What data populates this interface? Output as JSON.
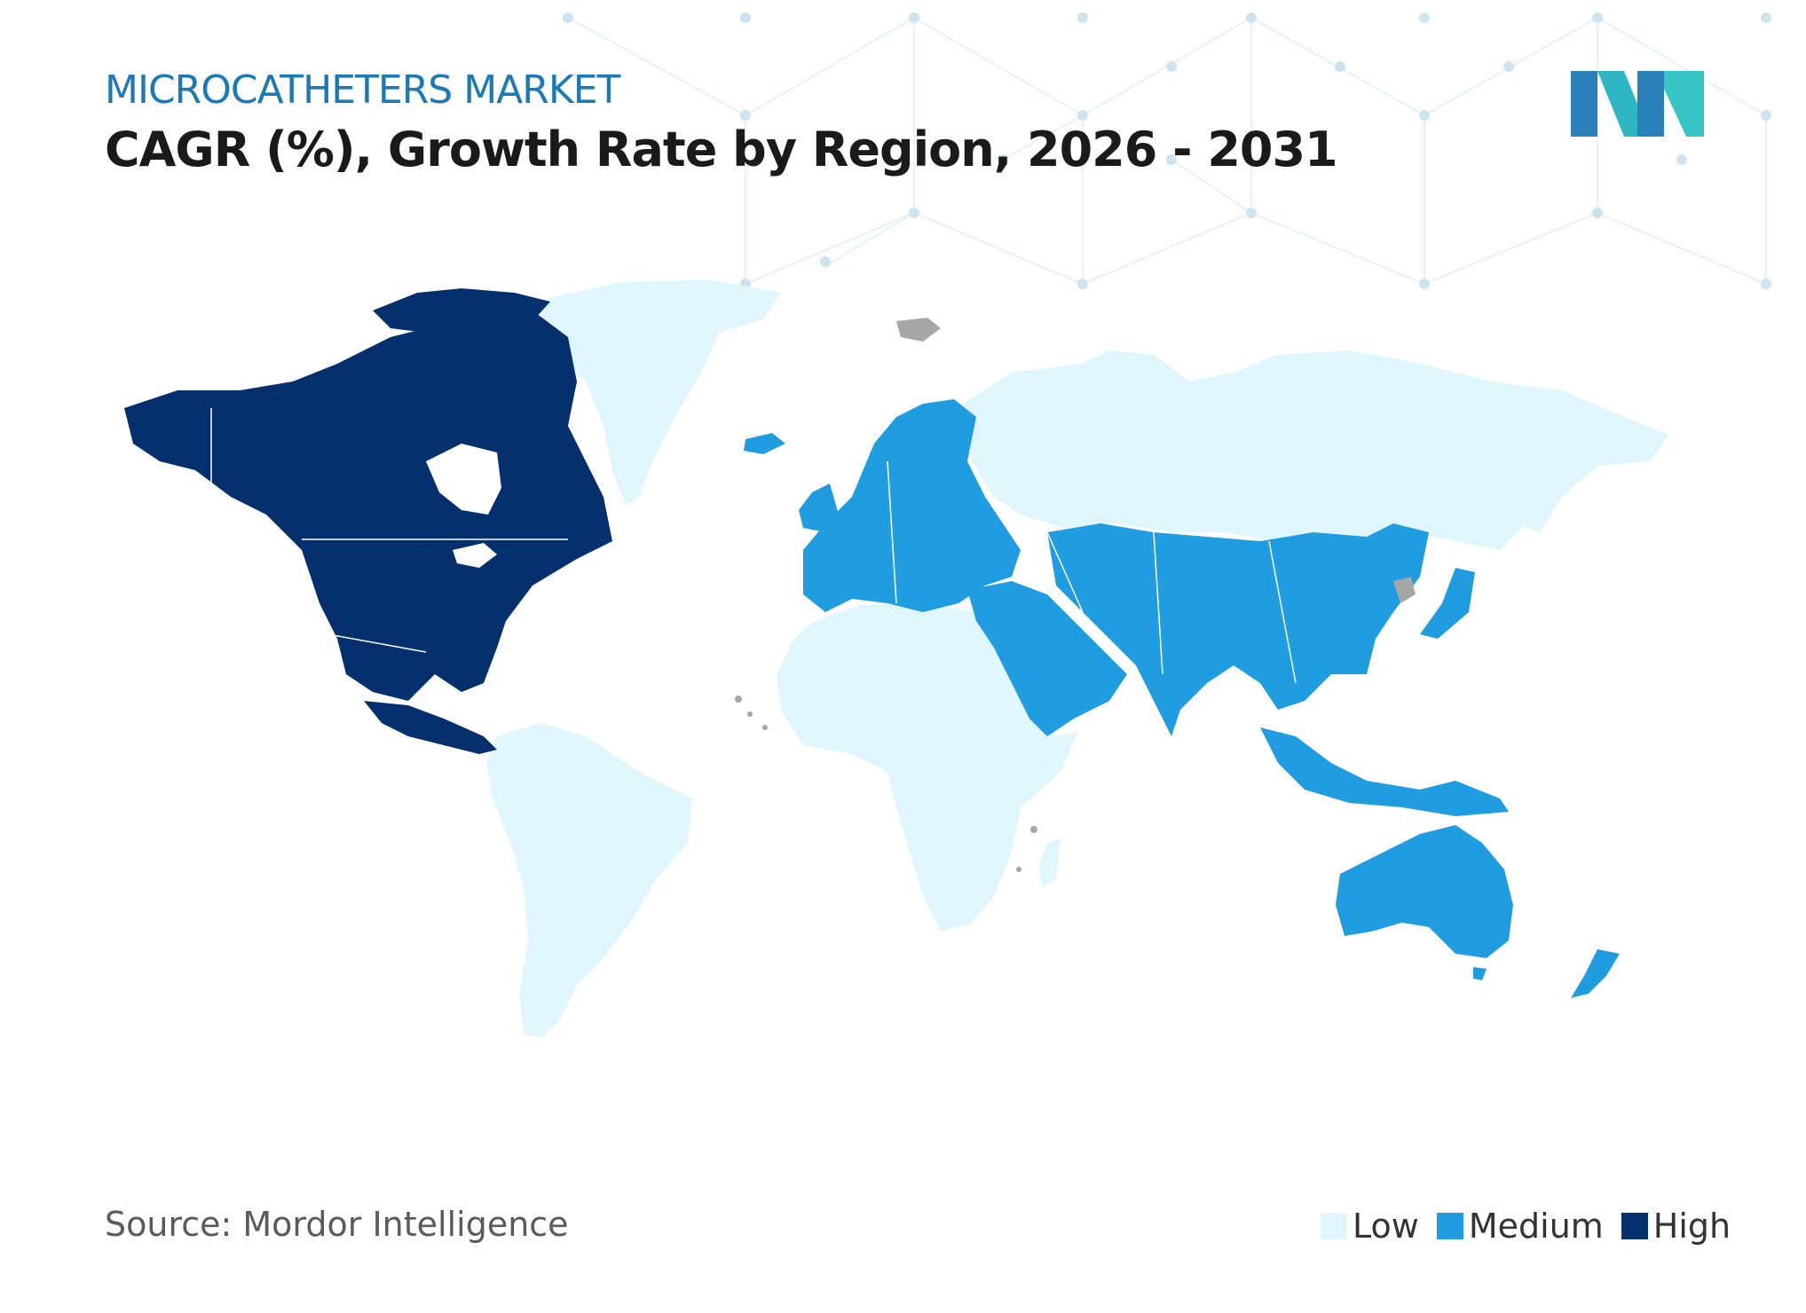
{
  "header": {
    "subtitle": "MICROCATHETERS MARKET",
    "title": "CAGR (%), Growth Rate by Region, 2026 - 2031"
  },
  "footer": {
    "source": "Source: Mordor Intelligence"
  },
  "legend": [
    {
      "label": "Low",
      "color": "#dff6fc"
    },
    {
      "label": "Medium",
      "color": "#1f9de0"
    },
    {
      "label": "High",
      "color": "#05306e"
    }
  ],
  "colors": {
    "low": "#dff6fc",
    "medium": "#1f9de0",
    "high": "#05306e",
    "no_data": "#a6a6a6",
    "title_accent": "#1b79b5"
  },
  "regions": [
    {
      "name": "North America",
      "level": "High"
    },
    {
      "name": "Europe",
      "level": "Medium"
    },
    {
      "name": "Asia-Pacific",
      "level": "Medium"
    },
    {
      "name": "Middle East",
      "level": "Medium"
    },
    {
      "name": "South America",
      "level": "Low"
    },
    {
      "name": "Africa",
      "level": "Low"
    },
    {
      "name": "Russia",
      "level": "Low"
    },
    {
      "name": "Greenland",
      "level": "Low"
    }
  ]
}
